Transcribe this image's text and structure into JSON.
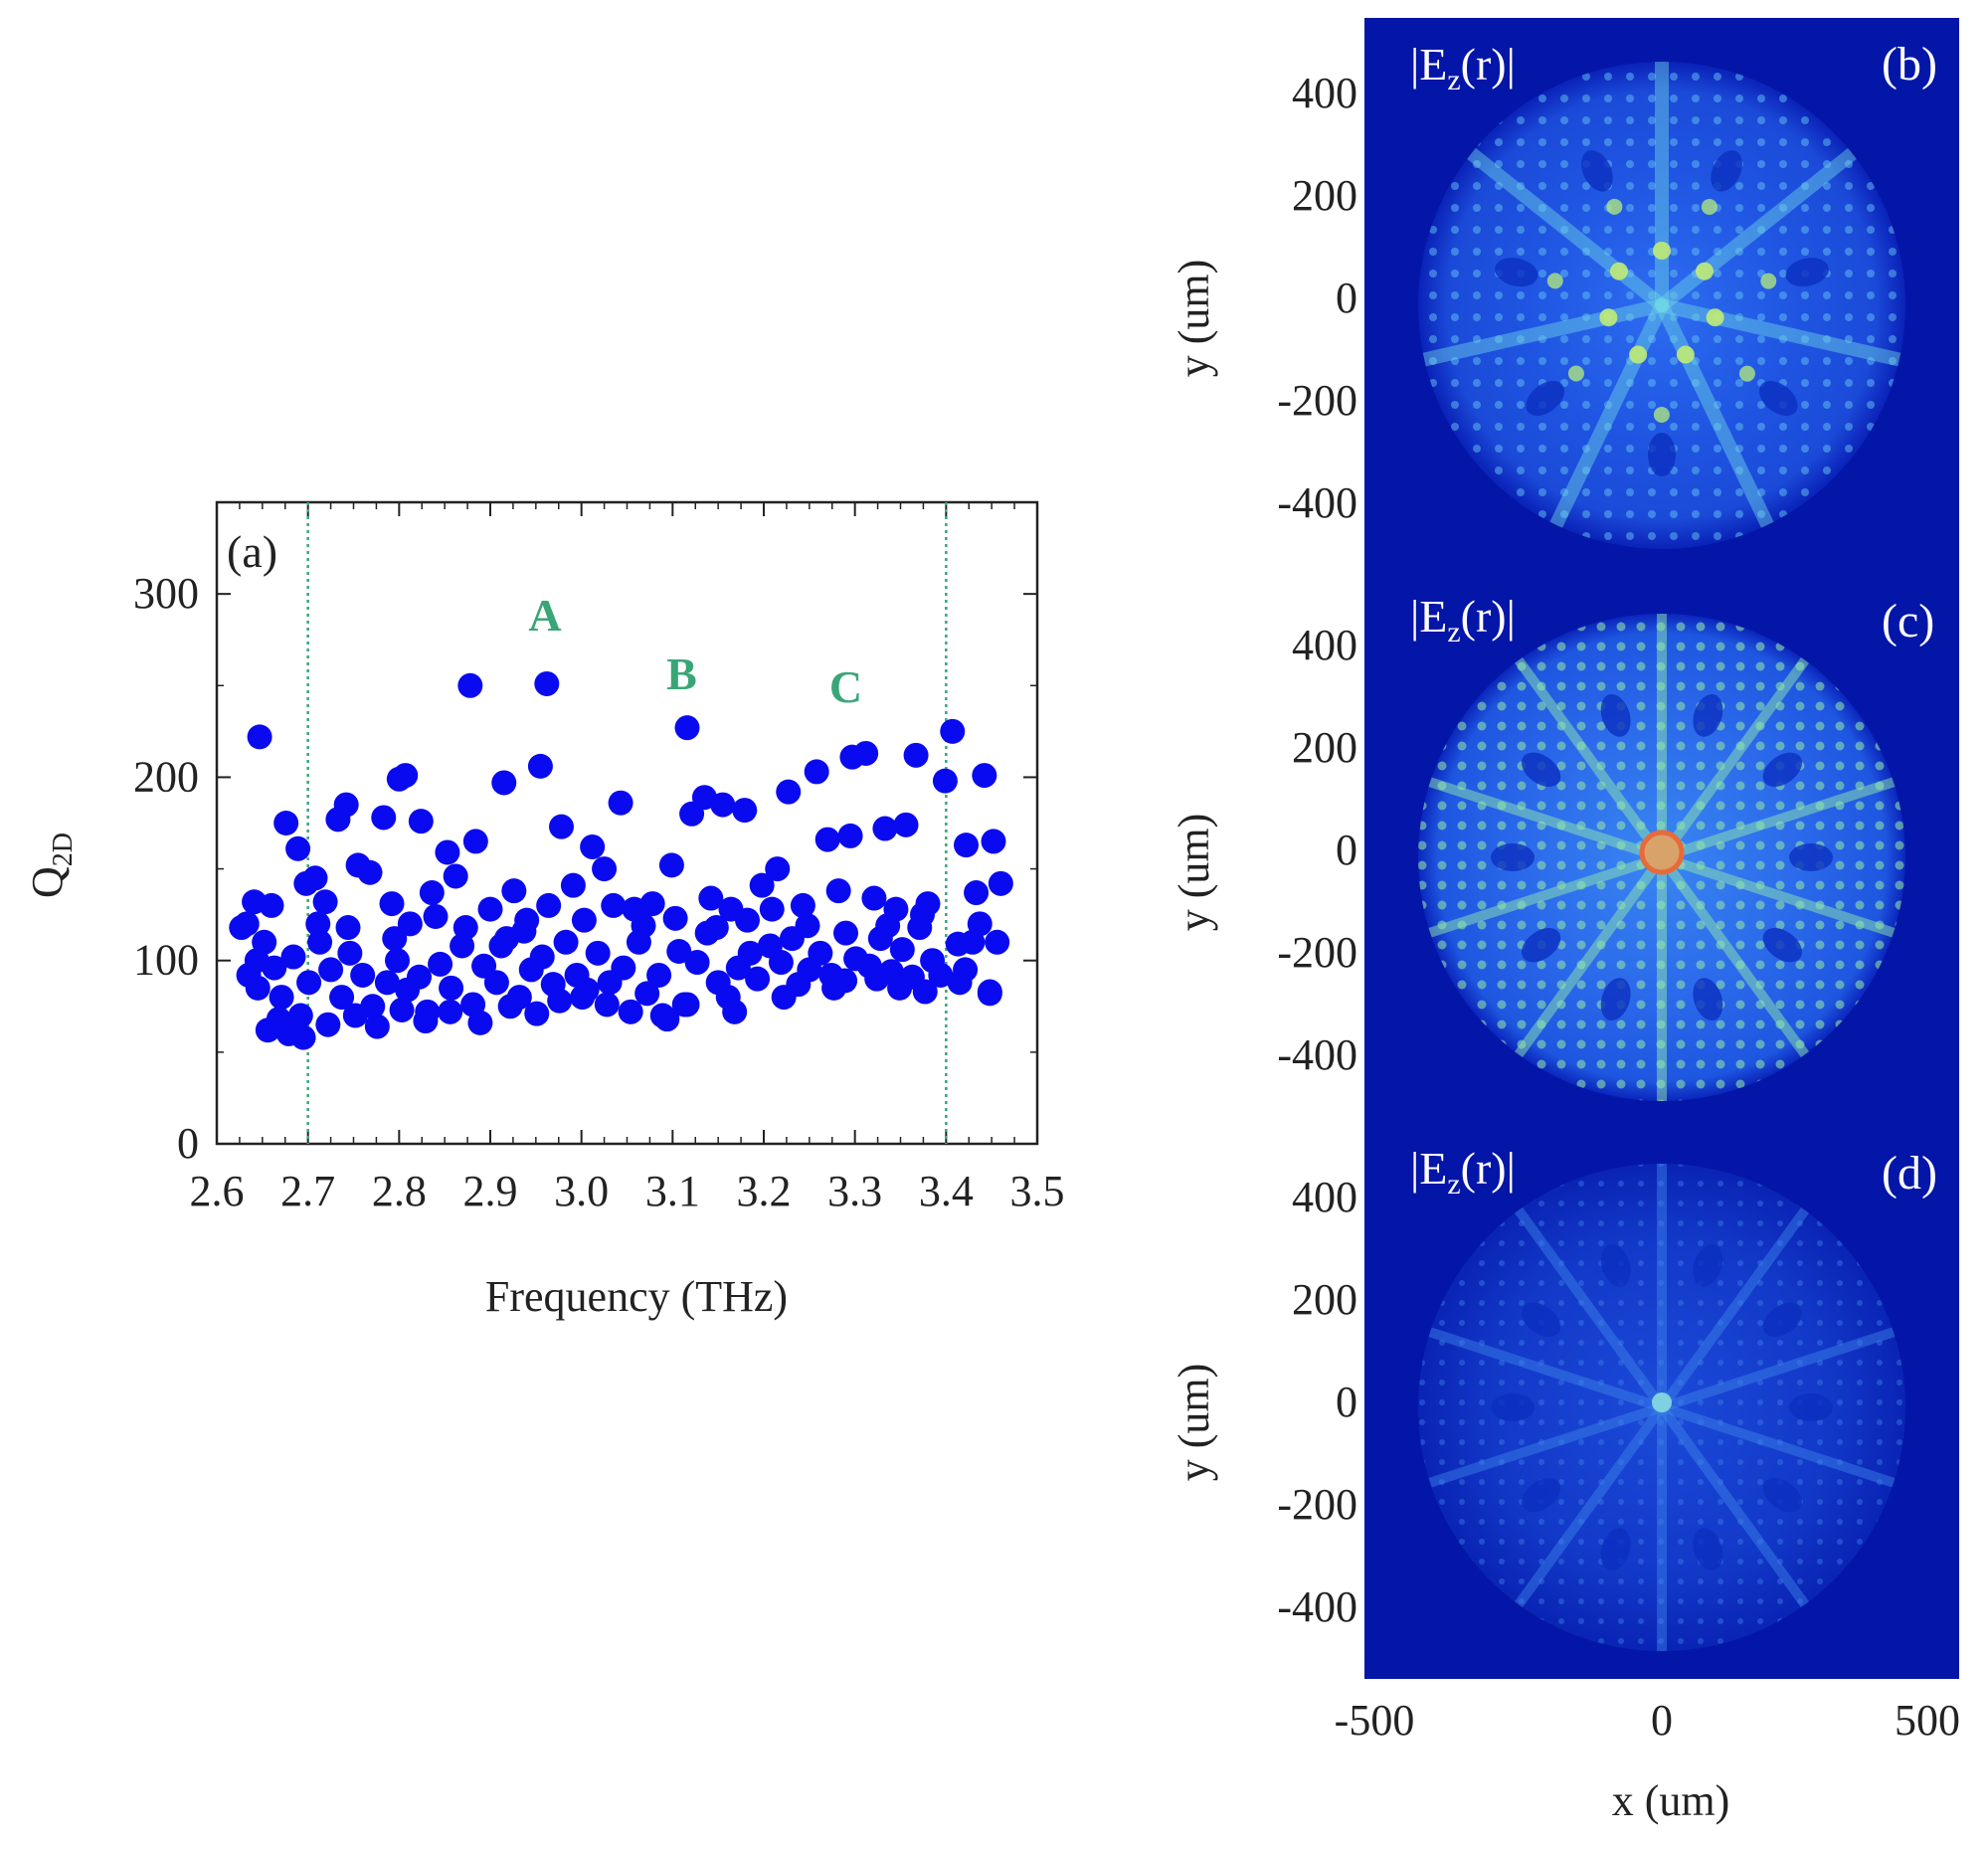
{
  "chart_data": [
    {
      "type": "scatter",
      "panel": "(a)",
      "xlabel": "Frequency (THz)",
      "ylabel": "Q",
      "ylabel_sub": "2D",
      "xlim": [
        2.6,
        3.5
      ],
      "ylim": [
        0,
        350
      ],
      "xticks": [
        "2.6",
        "2.7",
        "2.8",
        "2.9",
        "3.0",
        "3.1",
        "3.2",
        "3.3",
        "3.4",
        "3.5"
      ],
      "yticks": [
        "0",
        "100",
        "200",
        "300"
      ],
      "marker_color": "#0a0af0",
      "guide_color": "#3aa678",
      "vlines": [
        2.7,
        3.4
      ],
      "annotations": [
        {
          "text": "A",
          "x": 2.96,
          "y": 280
        },
        {
          "text": "B",
          "x": 3.11,
          "y": 248
        },
        {
          "text": "C",
          "x": 3.29,
          "y": 241
        }
      ],
      "points": [
        [
          2.647,
          222
        ],
        [
          2.878,
          250
        ],
        [
          2.962,
          251
        ],
        [
          3.116,
          227
        ],
        [
          3.407,
          225
        ],
        [
          2.955,
          206
        ],
        [
          2.8,
          199
        ],
        [
          2.807,
          201
        ],
        [
          2.915,
          197
        ],
        [
          3.258,
          203
        ],
        [
          3.227,
          192
        ],
        [
          3.297,
          211
        ],
        [
          3.312,
          213
        ],
        [
          3.367,
          212
        ],
        [
          3.442,
          201
        ],
        [
          3.399,
          198
        ],
        [
          3.043,
          186
        ],
        [
          2.742,
          185
        ],
        [
          2.733,
          177
        ],
        [
          2.676,
          175
        ],
        [
          2.783,
          178
        ],
        [
          2.824,
          176
        ],
        [
          2.978,
          173
        ],
        [
          3.135,
          189
        ],
        [
          3.155,
          185
        ],
        [
          3.179,
          182
        ],
        [
          3.121,
          180
        ],
        [
          2.853,
          159
        ],
        [
          2.884,
          165
        ],
        [
          3.012,
          162
        ],
        [
          3.099,
          152
        ],
        [
          3.27,
          166
        ],
        [
          3.295,
          168
        ],
        [
          3.333,
          172
        ],
        [
          3.356,
          174
        ],
        [
          3.422,
          163
        ],
        [
          3.452,
          165
        ],
        [
          2.689,
          161
        ],
        [
          2.641,
          132
        ],
        [
          2.66,
          130
        ],
        [
          2.633,
          120
        ],
        [
          2.652,
          110
        ],
        [
          2.627,
          118
        ],
        [
          2.698,
          142
        ],
        [
          2.708,
          145
        ],
        [
          2.719,
          132
        ],
        [
          2.755,
          152
        ],
        [
          2.768,
          148
        ],
        [
          2.792,
          131
        ],
        [
          2.812,
          120
        ],
        [
          2.836,
          137
        ],
        [
          2.862,
          146
        ],
        [
          2.9,
          128
        ],
        [
          2.926,
          138
        ],
        [
          2.94,
          122
        ],
        [
          2.991,
          141
        ],
        [
          3.025,
          150
        ],
        [
          3.058,
          128
        ],
        [
          3.078,
          131
        ],
        [
          3.142,
          134
        ],
        [
          3.164,
          128
        ],
        [
          3.198,
          141
        ],
        [
          3.215,
          150
        ],
        [
          3.243,
          130
        ],
        [
          3.282,
          138
        ],
        [
          3.321,
          134
        ],
        [
          3.345,
          128
        ],
        [
          3.38,
          131
        ],
        [
          3.433,
          137
        ],
        [
          3.46,
          142
        ],
        [
          2.635,
          92
        ],
        [
          2.645,
          85
        ],
        [
          2.663,
          96
        ],
        [
          2.671,
          80
        ],
        [
          2.684,
          102
        ],
        [
          2.692,
          70
        ],
        [
          2.701,
          88
        ],
        [
          2.713,
          110
        ],
        [
          2.725,
          95
        ],
        [
          2.737,
          80
        ],
        [
          2.746,
          104
        ],
        [
          2.76,
          92
        ],
        [
          2.771,
          75
        ],
        [
          2.787,
          88
        ],
        [
          2.798,
          100
        ],
        [
          2.809,
          84
        ],
        [
          2.822,
          91
        ],
        [
          2.831,
          72
        ],
        [
          2.845,
          98
        ],
        [
          2.857,
          85
        ],
        [
          2.869,
          108
        ],
        [
          2.881,
          76
        ],
        [
          2.893,
          97
        ],
        [
          2.907,
          88
        ],
        [
          2.918,
          112
        ],
        [
          2.932,
          80
        ],
        [
          2.945,
          95
        ],
        [
          2.957,
          102
        ],
        [
          2.969,
          87
        ],
        [
          2.983,
          110
        ],
        [
          2.995,
          92
        ],
        [
          3.006,
          84
        ],
        [
          3.018,
          104
        ],
        [
          3.031,
          88
        ],
        [
          3.046,
          96
        ],
        [
          3.063,
          110
        ],
        [
          3.072,
          82
        ],
        [
          3.085,
          92
        ],
        [
          3.094,
          68
        ],
        [
          3.107,
          105
        ],
        [
          3.113,
          76
        ],
        [
          3.127,
          99
        ],
        [
          3.138,
          115
        ],
        [
          3.15,
          88
        ],
        [
          3.161,
          80
        ],
        [
          3.172,
          96
        ],
        [
          3.185,
          104
        ],
        [
          3.193,
          90
        ],
        [
          3.207,
          108
        ],
        [
          3.219,
          99
        ],
        [
          3.231,
          112
        ],
        [
          3.238,
          87
        ],
        [
          3.25,
          95
        ],
        [
          3.262,
          104
        ],
        [
          3.274,
          92
        ],
        [
          3.289,
          89
        ],
        [
          3.301,
          101
        ],
        [
          3.316,
          97
        ],
        [
          3.328,
          112
        ],
        [
          3.34,
          94
        ],
        [
          3.352,
          106
        ],
        [
          3.363,
          91
        ],
        [
          3.371,
          118
        ],
        [
          3.385,
          100
        ],
        [
          3.394,
          92
        ],
        [
          3.413,
          109
        ],
        [
          3.421,
          95
        ],
        [
          3.437,
          120
        ],
        [
          3.448,
          83
        ],
        [
          3.456,
          110
        ],
        [
          2.656,
          62
        ],
        [
          2.668,
          68
        ],
        [
          2.679,
          60
        ],
        [
          2.695,
          58
        ],
        [
          2.722,
          65
        ],
        [
          2.752,
          70
        ],
        [
          2.776,
          64
        ],
        [
          2.803,
          73
        ],
        [
          2.829,
          67
        ],
        [
          2.856,
          72
        ],
        [
          2.889,
          66
        ],
        [
          2.922,
          75
        ],
        [
          2.951,
          71
        ],
        [
          2.976,
          78
        ],
        [
          3.001,
          80
        ],
        [
          3.028,
          76
        ],
        [
          3.054,
          72
        ],
        [
          3.089,
          70
        ],
        [
          3.116,
          76
        ],
        [
          3.168,
          72
        ],
        [
          3.222,
          80
        ],
        [
          3.277,
          85
        ],
        [
          3.324,
          90
        ],
        [
          3.349,
          85
        ],
        [
          3.377,
          83
        ],
        [
          3.415,
          88
        ],
        [
          3.448,
          82
        ],
        [
          2.644,
          100
        ],
        [
          2.711,
          120
        ],
        [
          2.744,
          118
        ],
        [
          2.795,
          112
        ],
        [
          2.84,
          124
        ],
        [
          2.873,
          118
        ],
        [
          2.912,
          108
        ],
        [
          2.937,
          116
        ],
        [
          2.964,
          130
        ],
        [
          3.003,
          122
        ],
        [
          3.035,
          130
        ],
        [
          3.068,
          119
        ],
        [
          3.103,
          123
        ],
        [
          3.148,
          118
        ],
        [
          3.182,
          122
        ],
        [
          3.209,
          128
        ],
        [
          3.248,
          119
        ],
        [
          3.29,
          115
        ],
        [
          3.336,
          119
        ],
        [
          3.374,
          125
        ],
        [
          3.429,
          110
        ]
      ]
    },
    {
      "type": "heatmap",
      "panel": "(b)",
      "field_label": "|E",
      "field_sub": "z",
      "field_arg": "(r)|",
      "ylabel": "y (um)",
      "yticks": [
        "400",
        "200",
        "0",
        "-200",
        "-400"
      ]
    },
    {
      "type": "heatmap",
      "panel": "(c)",
      "field_label": "|E",
      "field_sub": "z",
      "field_arg": "(r)|",
      "ylabel": "y (um)",
      "yticks": [
        "400",
        "200",
        "0",
        "-200",
        "-400"
      ]
    },
    {
      "type": "heatmap",
      "panel": "(d)",
      "field_label": "|E",
      "field_sub": "z",
      "field_arg": "(r)|",
      "ylabel": "y (um)",
      "xlabel": "x (um)",
      "yticks": [
        "400",
        "200",
        "0",
        "-200",
        "-400"
      ],
      "xticks": [
        "-500",
        "0",
        "500"
      ]
    }
  ],
  "colors": {
    "field_bg": "#0416a8",
    "field_mid": "#1a4fe0",
    "field_hi": "#55d0e8",
    "field_peak": "#c8f070"
  }
}
